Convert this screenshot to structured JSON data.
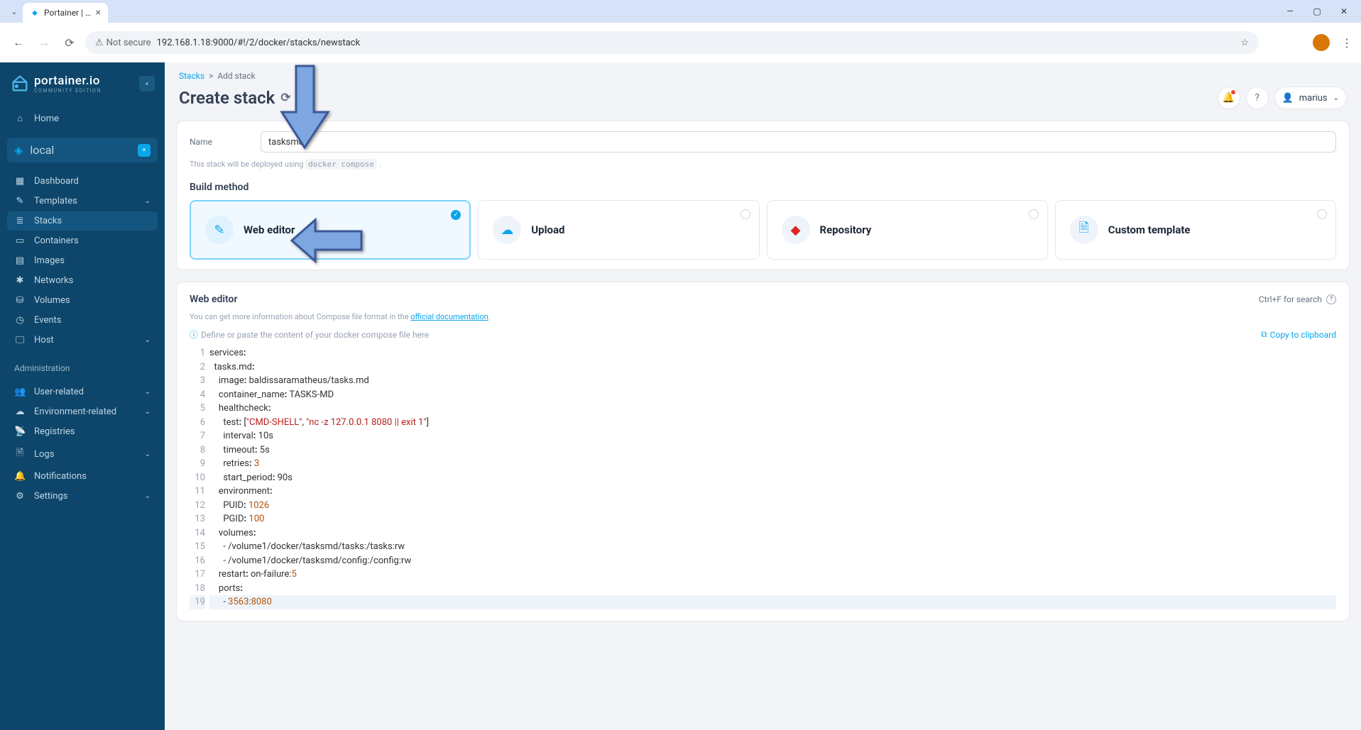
{
  "browser": {
    "tab_title": "Portainer | loca",
    "url": "192.168.1.18:9000/#!/2/docker/stacks/newstack",
    "not_secure": "Not secure"
  },
  "sidebar": {
    "brand": "portainer.io",
    "edition": "COMMUNITY EDITION",
    "home": "Home",
    "env": "local",
    "items": [
      {
        "icon": "dashboard",
        "label": "Dashboard"
      },
      {
        "icon": "templates",
        "label": "Templates",
        "expand": true
      },
      {
        "icon": "stacks",
        "label": "Stacks",
        "active": true
      },
      {
        "icon": "containers",
        "label": "Containers"
      },
      {
        "icon": "images",
        "label": "Images"
      },
      {
        "icon": "networks",
        "label": "Networks"
      },
      {
        "icon": "volumes",
        "label": "Volumes"
      },
      {
        "icon": "events",
        "label": "Events"
      },
      {
        "icon": "host",
        "label": "Host",
        "expand": true
      }
    ],
    "admin_label": "Administration",
    "admin_items": [
      {
        "icon": "users",
        "label": "User-related",
        "expand": true
      },
      {
        "icon": "env",
        "label": "Environment-related",
        "expand": true
      },
      {
        "icon": "registries",
        "label": "Registries"
      },
      {
        "icon": "logs",
        "label": "Logs",
        "expand": true
      },
      {
        "icon": "notifications",
        "label": "Notifications"
      },
      {
        "icon": "settings",
        "label": "Settings",
        "expand": true
      }
    ]
  },
  "breadcrumb": {
    "root": "Stacks",
    "current": "Add stack"
  },
  "page_title": "Create stack",
  "user": "marius",
  "form": {
    "name_label": "Name",
    "name_value": "tasksmd",
    "deploy_note_pre": "This stack will be deployed using ",
    "deploy_note_code": "docker compose",
    "deploy_note_post": "."
  },
  "build": {
    "section_title": "Build method",
    "cards": [
      {
        "title": "Web editor",
        "color": "#0ba5ec",
        "selected": true
      },
      {
        "title": "Upload",
        "color": "#0ba5ec"
      },
      {
        "title": "Repository",
        "color": "#dc2626"
      },
      {
        "title": "Custom template",
        "color": "#0ba5ec"
      }
    ]
  },
  "editor": {
    "title": "Web editor",
    "search_hint": "Ctrl+F for search",
    "info_pre": "You can get more information about Compose file format in the ",
    "info_link": "official documentation",
    "info_post": ".",
    "define_hint": "Define or paste the content of your docker compose file here",
    "copy": "Copy to clipboard",
    "lines": 19,
    "code": {
      "l1": "services:",
      "l2": "  tasks.md:",
      "l3_k": "    image:",
      "l3_v": " baldissaramatheus/tasks.md",
      "l4_k": "    container_name:",
      "l4_v": " TASKS-MD",
      "l5": "    healthcheck:",
      "l6_k": "      test:",
      "l6_b": " [",
      "l6_s1": "\"CMD-SHELL\"",
      "l6_c1": ", ",
      "l6_s2": "\"nc -z 127.0.0.1 8080 || exit 1\"",
      "l6_e": "]",
      "l7_k": "      interval:",
      "l7_v": " 10s",
      "l8_k": "      timeout:",
      "l8_v": " 5s",
      "l9_k": "      retries:",
      "l9_v": " 3",
      "l10_k": "      start_period:",
      "l10_v": " 90s",
      "l11": "    environment:",
      "l12_k": "      PUID:",
      "l12_v": " 1026",
      "l13_k": "      PGID:",
      "l13_v": " 100",
      "l14": "    volumes:",
      "l15": "      - /volume1/docker/tasksmd/tasks:/tasks:rw",
      "l16": "      - /volume1/docker/tasksmd/config:/config:rw",
      "l17_k": "    restart:",
      "l17_v": " on-failure:5",
      "l18": "    ports:",
      "l19_k": "      - ",
      "l19_a": "3563",
      "l19_c": ":",
      "l19_b": "8080"
    }
  },
  "annotation": {
    "arrow_color": "#7ea6e0",
    "arrow_stroke": "#3b5998"
  }
}
